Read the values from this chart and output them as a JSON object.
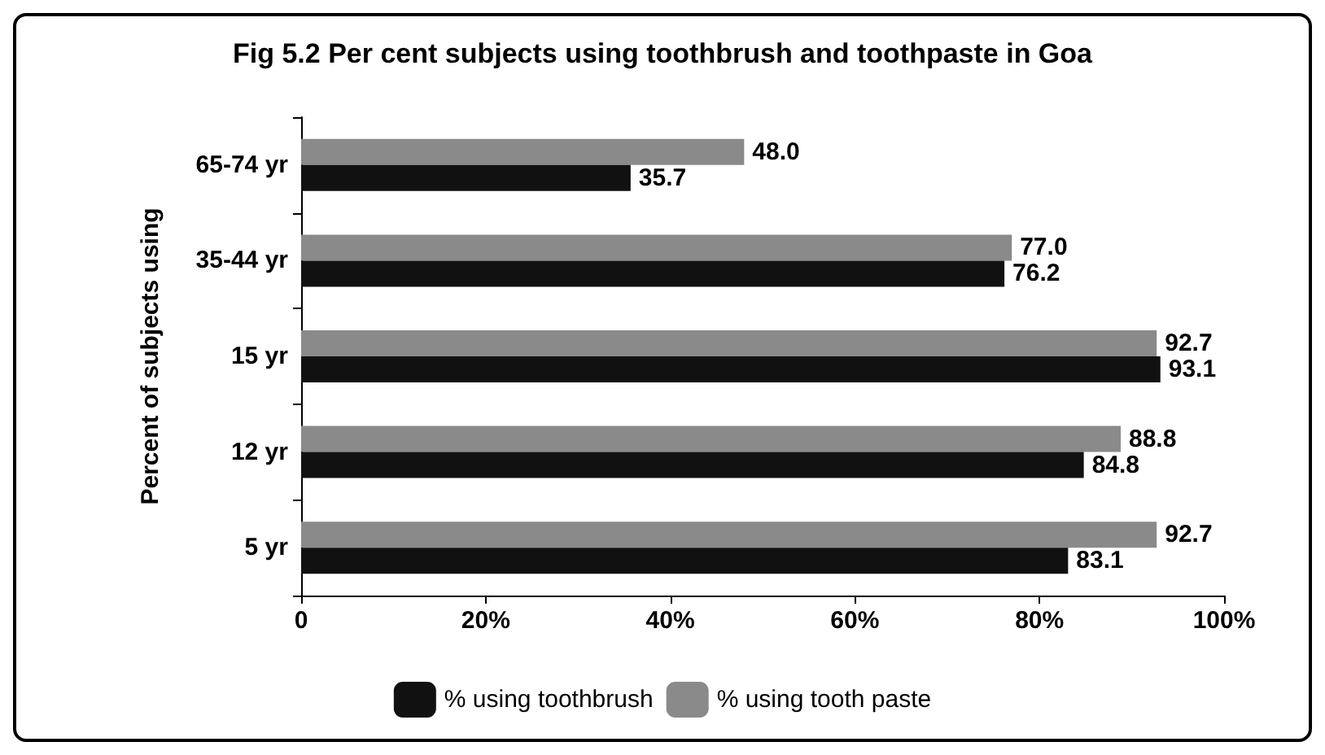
{
  "chart_data": {
    "type": "bar",
    "orientation": "horizontal",
    "title": "Fig 5.2 Per cent subjects using toothbrush and toothpaste in Goa",
    "ylabel": "Percent of subjects using",
    "categories": [
      "65-74 yr",
      "35-44 yr",
      "15 yr",
      "12 yr",
      "5 yr"
    ],
    "series": [
      {
        "name": "% using toothbrush",
        "color": "#111111",
        "values": [
          35.7,
          76.2,
          93.1,
          84.8,
          83.1
        ],
        "value_labels": [
          "35.7",
          "76.2",
          "93.1",
          "84.8",
          "83.1"
        ]
      },
      {
        "name": "% using tooth paste",
        "color": "#8a8a8a",
        "values": [
          48.0,
          77.0,
          92.7,
          88.8,
          92.7
        ],
        "value_labels": [
          "48.0",
          "77.0",
          "92.7",
          "88.8",
          "92.7"
        ]
      }
    ],
    "xlim": [
      0,
      100
    ],
    "xticks": [
      0,
      {
        "value": 20,
        "label": "20%"
      },
      {
        "value": 40,
        "label": "40%"
      },
      {
        "value": 60,
        "label": "60%"
      },
      {
        "value": 80,
        "label": "80%"
      },
      {
        "value": 100,
        "label": "100%"
      }
    ],
    "grid": false,
    "legend": "bottom"
  }
}
